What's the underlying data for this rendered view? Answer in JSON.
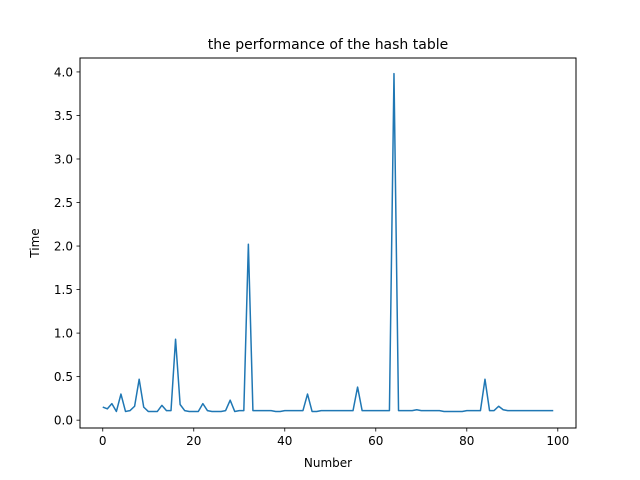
{
  "chart_data": {
    "type": "line",
    "title": "the performance of the hash table",
    "xlabel": "Number",
    "ylabel": "Time",
    "xlim": [
      -5,
      104
    ],
    "ylim": [
      -0.09,
      4.16
    ],
    "xticks": [
      0,
      20,
      40,
      60,
      80,
      100
    ],
    "yticks": [
      0.0,
      0.5,
      1.0,
      1.5,
      2.0,
      2.5,
      3.0,
      3.5,
      4.0
    ],
    "xtick_labels": [
      "0",
      "20",
      "40",
      "60",
      "80",
      "100"
    ],
    "ytick_labels": [
      "0.0",
      "0.5",
      "1.0",
      "1.5",
      "2.0",
      "2.5",
      "3.0",
      "3.5",
      "4.0"
    ],
    "grid": false,
    "series": [
      {
        "color": "#1f77b4",
        "x": [
          0,
          1,
          2,
          3,
          4,
          5,
          6,
          7,
          8,
          9,
          10,
          11,
          12,
          13,
          14,
          15,
          16,
          17,
          18,
          19,
          20,
          21,
          22,
          23,
          24,
          25,
          26,
          27,
          28,
          29,
          30,
          31,
          32,
          33,
          34,
          35,
          36,
          37,
          38,
          39,
          40,
          41,
          42,
          43,
          44,
          45,
          46,
          47,
          48,
          49,
          50,
          51,
          52,
          53,
          54,
          55,
          56,
          57,
          58,
          59,
          60,
          61,
          62,
          63,
          64,
          65,
          66,
          67,
          68,
          69,
          70,
          71,
          72,
          73,
          74,
          75,
          76,
          77,
          78,
          79,
          80,
          81,
          82,
          83,
          84,
          85,
          86,
          87,
          88,
          89,
          90,
          91,
          92,
          93,
          94,
          95,
          96,
          97,
          98,
          99
        ],
        "y": [
          0.15,
          0.13,
          0.19,
          0.1,
          0.3,
          0.1,
          0.11,
          0.16,
          0.47,
          0.15,
          0.1,
          0.1,
          0.1,
          0.17,
          0.11,
          0.11,
          0.93,
          0.18,
          0.11,
          0.1,
          0.1,
          0.1,
          0.19,
          0.11,
          0.1,
          0.1,
          0.1,
          0.11,
          0.23,
          0.1,
          0.11,
          0.11,
          2.02,
          0.11,
          0.11,
          0.11,
          0.11,
          0.11,
          0.1,
          0.1,
          0.11,
          0.11,
          0.11,
          0.11,
          0.11,
          0.3,
          0.1,
          0.1,
          0.11,
          0.11,
          0.11,
          0.11,
          0.11,
          0.11,
          0.11,
          0.11,
          0.38,
          0.11,
          0.11,
          0.11,
          0.11,
          0.11,
          0.11,
          0.11,
          3.98,
          0.11,
          0.11,
          0.11,
          0.11,
          0.12,
          0.11,
          0.11,
          0.11,
          0.11,
          0.11,
          0.1,
          0.1,
          0.1,
          0.1,
          0.1,
          0.11,
          0.11,
          0.11,
          0.11,
          0.47,
          0.11,
          0.11,
          0.16,
          0.12,
          0.11,
          0.11,
          0.11,
          0.11,
          0.11,
          0.11,
          0.11,
          0.11,
          0.11,
          0.11,
          0.11
        ]
      }
    ]
  }
}
